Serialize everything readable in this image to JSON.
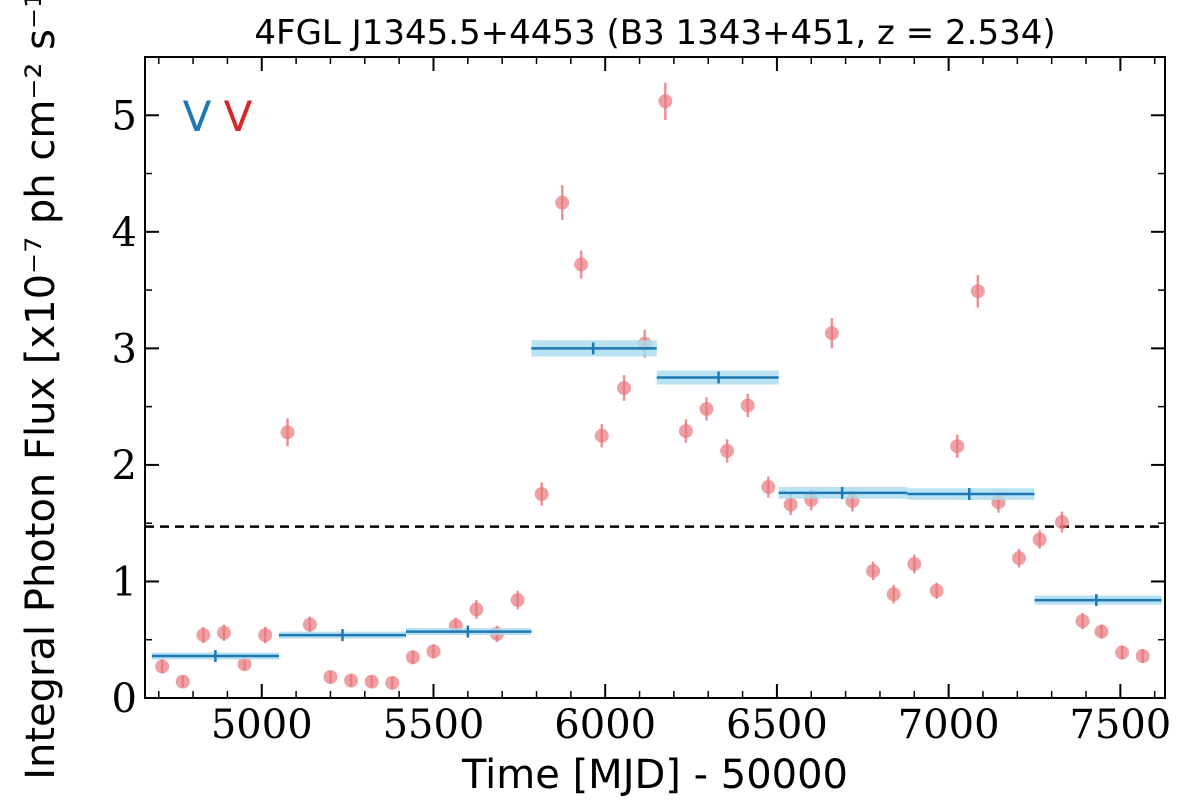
{
  "chart_data": {
    "type": "scatter",
    "title": "4FGL J1345.5+4453 (B3 1343+451, z = 2.534)",
    "xlabel": "Time [MJD] - 50000",
    "ylabel": "Integral Photon Flux [x10⁻⁷ ph cm⁻² s⁻¹]",
    "xlim": [
      4660,
      7630
    ],
    "ylim": [
      0,
      5.5
    ],
    "x_ticks": [
      5000,
      5500,
      6000,
      6500,
      7000,
      7500
    ],
    "y_ticks": [
      0,
      1,
      2,
      3,
      4,
      5
    ],
    "x_tick_labels": [
      "5000",
      "5500",
      "6000",
      "6500",
      "7000",
      "7500"
    ],
    "y_tick_labels": [
      "0",
      "1",
      "2",
      "3",
      "4",
      "5"
    ],
    "reference_line": {
      "y": 1.47,
      "style": "dashed",
      "color": "#000000"
    },
    "flags": [
      {
        "text": "V",
        "color": "#1f77b4"
      },
      {
        "text": "V",
        "color": "#d62728"
      }
    ],
    "colors": {
      "points": "#e8787c",
      "bins": "#1f77b4",
      "band": "#a8dcef"
    },
    "series": [
      {
        "kind": "points",
        "x": [
          4710,
          4770,
          4830,
          4890,
          4950,
          5010,
          5075,
          5140,
          5200,
          5260,
          5320,
          5380,
          5440,
          5500,
          5565,
          5625,
          5685,
          5745,
          5815,
          5875,
          5930,
          5990,
          6055,
          6115,
          6175,
          6235,
          6295,
          6355,
          6415,
          6475,
          6540,
          6600,
          6720,
          6660,
          6780,
          6840,
          6900,
          6965,
          7025,
          7085,
          7145,
          7205,
          7265,
          7330,
          7390,
          7445,
          7505,
          7565
        ],
        "y": [
          0.27,
          0.14,
          0.54,
          0.56,
          0.29,
          0.54,
          2.28,
          0.63,
          0.18,
          0.15,
          0.14,
          0.13,
          0.35,
          0.4,
          0.62,
          0.76,
          0.55,
          0.84,
          1.75,
          4.25,
          3.72,
          2.25,
          2.66,
          3.04,
          5.12,
          2.29,
          2.48,
          2.12,
          2.51,
          1.81,
          1.66,
          1.7,
          1.69,
          3.13,
          1.09,
          0.89,
          1.15,
          0.92,
          2.16,
          3.49,
          1.68,
          1.2,
          1.36,
          1.51,
          0.66,
          0.57,
          0.39,
          0.36
        ],
        "err": [
          0.06,
          0.05,
          0.07,
          0.07,
          0.05,
          0.07,
          0.12,
          0.07,
          0.05,
          0.05,
          0.05,
          0.05,
          0.06,
          0.06,
          0.07,
          0.08,
          0.07,
          0.08,
          0.1,
          0.15,
          0.12,
          0.1,
          0.11,
          0.12,
          0.16,
          0.1,
          0.1,
          0.1,
          0.1,
          0.09,
          0.09,
          0.09,
          0.09,
          0.13,
          0.08,
          0.08,
          0.08,
          0.07,
          0.1,
          0.14,
          0.09,
          0.08,
          0.08,
          0.09,
          0.07,
          0.06,
          0.06,
          0.06
        ]
      },
      {
        "kind": "bins",
        "x0": [
          4680,
          5050,
          5420,
          5785,
          6150,
          6505,
          6880,
          7250
        ],
        "x1": [
          5050,
          5420,
          5785,
          6150,
          6505,
          6880,
          7250,
          7620
        ],
        "xc": [
          4865,
          5235,
          5600,
          5965,
          6330,
          6690,
          7060,
          7430
        ],
        "y": [
          0.36,
          0.54,
          0.57,
          3.0,
          2.75,
          1.76,
          1.75,
          0.84
        ],
        "err": [
          0.03,
          0.03,
          0.03,
          0.07,
          0.06,
          0.05,
          0.05,
          0.04
        ]
      }
    ]
  }
}
